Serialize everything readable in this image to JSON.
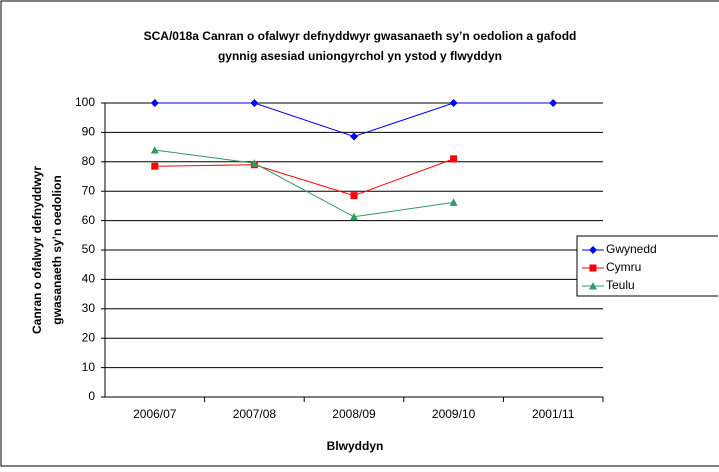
{
  "chart_data": {
    "type": "line",
    "title": [
      "SCA/018a Canran o ofalwyr defnyddwyr gwasanaeth sy’n oedolion a gafodd",
      "gynnig asesiad uniongyrchol yn ystod y flwyddyn"
    ],
    "x_label": "Blwyddyn",
    "y_label": [
      "Canran o ofalwyr defnyddwyr",
      "gwasanaeth sy’n oedolion"
    ],
    "categories": [
      "2006/07",
      "2007/08",
      "2008/09",
      "2009/10",
      "2001/11"
    ],
    "series": [
      {
        "name": "Gwynedd",
        "color": "#0000ff",
        "marker": "diamond",
        "values": [
          100,
          100,
          88.6,
          100,
          100
        ]
      },
      {
        "name": "Cymru",
        "color": "#ff0000",
        "marker": "square",
        "values": [
          78.5,
          79,
          68.5,
          81,
          null
        ]
      },
      {
        "name": "Teulu",
        "color": "#339966",
        "marker": "triangle",
        "values": [
          84,
          79.5,
          61.3,
          66.2,
          null
        ]
      }
    ],
    "ylim": [
      0,
      100
    ],
    "yticks": [
      0,
      10,
      20,
      30,
      40,
      50,
      60,
      70,
      80,
      90,
      100
    ],
    "grid": true,
    "legend": "right"
  }
}
